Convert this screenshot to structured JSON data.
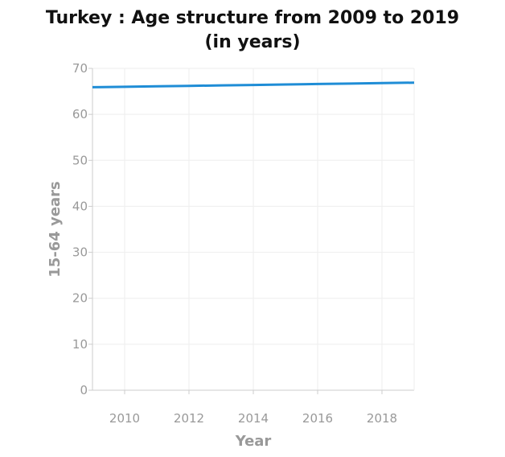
{
  "chart_data": {
    "type": "line",
    "title_line1": "Turkey : Age structure from 2009 to 2019",
    "title_line2": "(in years)",
    "xlabel": "Year",
    "ylabel": "15-64 years",
    "x": [
      2009,
      2010,
      2011,
      2012,
      2013,
      2014,
      2015,
      2016,
      2017,
      2018,
      2019
    ],
    "series": [
      {
        "values": [
          65.9,
          66.0,
          66.1,
          66.2,
          66.3,
          66.4,
          66.5,
          66.6,
          66.7,
          66.8,
          66.9
        ]
      }
    ],
    "xlim": [
      2009,
      2019
    ],
    "ylim": [
      0,
      70
    ],
    "xticks": [
      2010,
      2012,
      2014,
      2016,
      2018
    ],
    "yticks": [
      0,
      10,
      20,
      30,
      40,
      50,
      60,
      70
    ],
    "grid": true,
    "legend": "none",
    "colors": {
      "line": "#1f8dd6",
      "grid": "#eeeeee",
      "axis": "#cccccc",
      "text": "#999999"
    }
  }
}
